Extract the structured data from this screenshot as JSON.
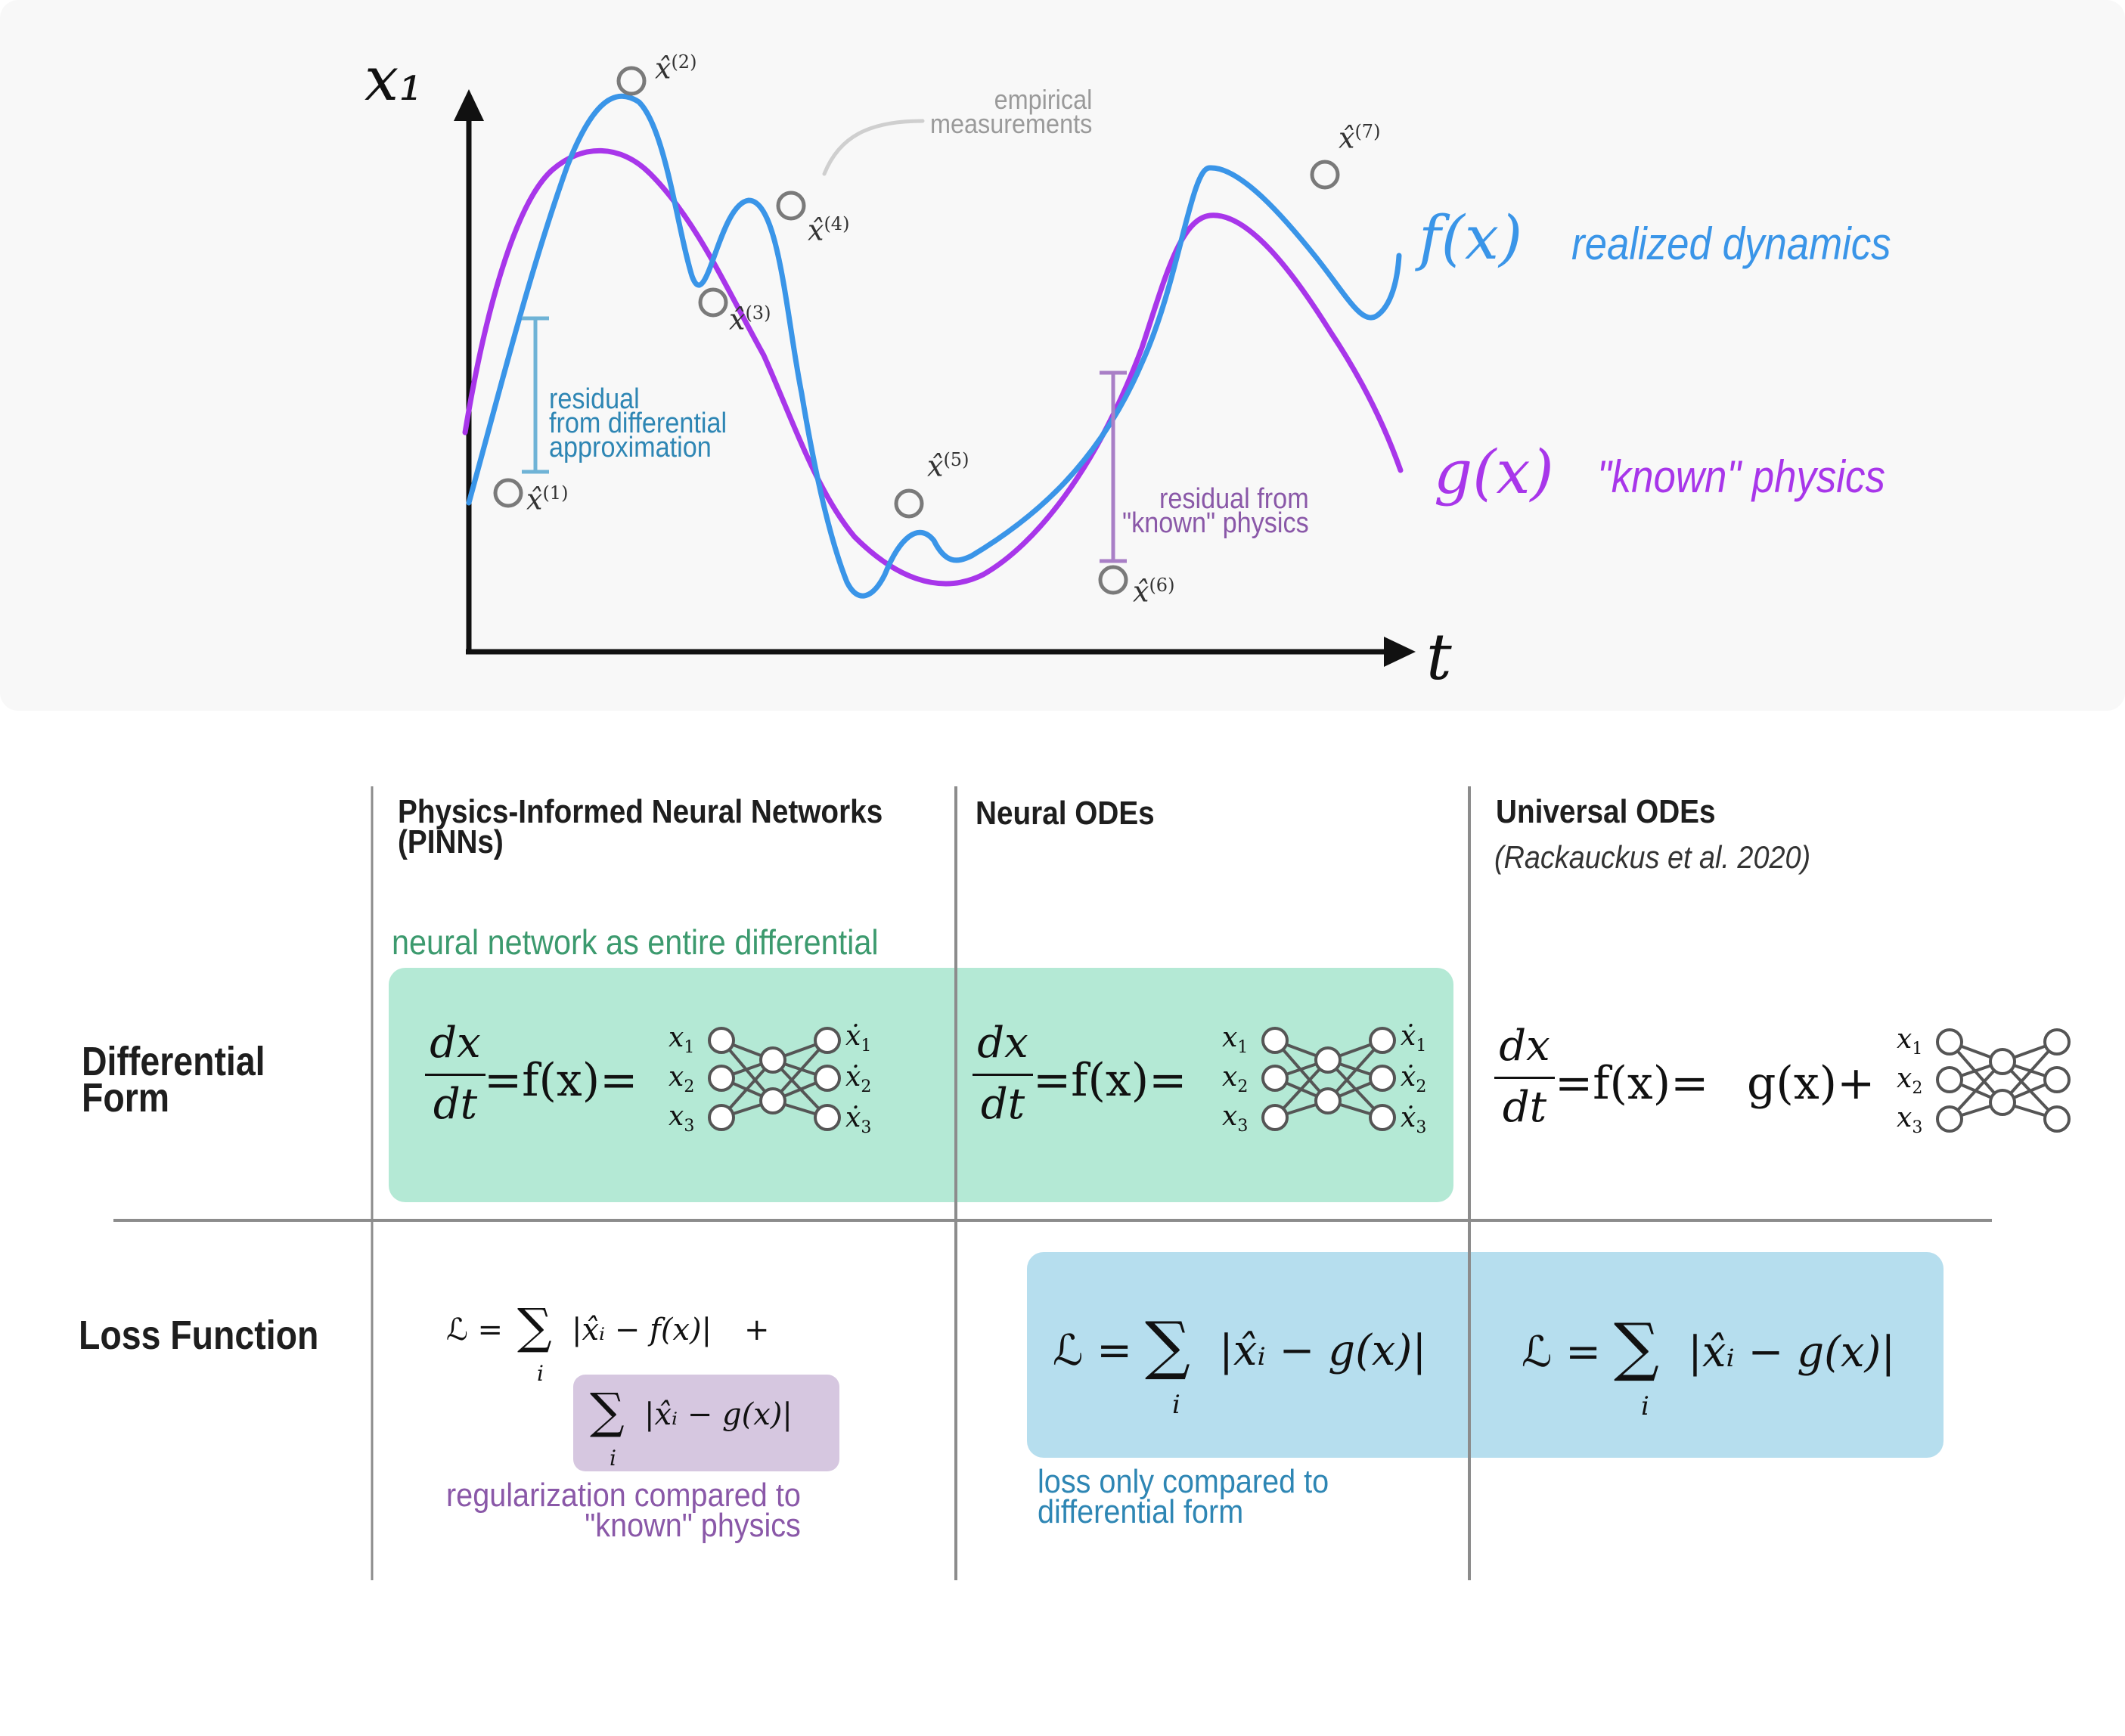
{
  "colors": {
    "panel_bg": "#f8f8f8",
    "f_curve": "#3a95e8",
    "g_curve": "#a836ea",
    "measurement": "#7a7a7a",
    "residual_diff": "#6fb3d6",
    "residual_known": "#a97fc6",
    "green_box": "#b4e9d5",
    "blue_box": "#b6deee",
    "purple_box": "#d6c7e0",
    "green_text": "#3c9a6e",
    "blue_text": "#2e86b4",
    "purple_text": "#8a58a8",
    "grid": "#8c8c8c",
    "axis": "#111111"
  },
  "plot": {
    "y_axis_label": "x₁",
    "x_axis_label": "t",
    "f_label": "f(x)",
    "f_desc": "realized dynamics",
    "g_label": "g(x)",
    "g_desc": "\"known\" physics",
    "empirical_line1": "empirical",
    "empirical_line2": "measurements",
    "residual_diff_lines": [
      "residual",
      "from differential",
      "approximation"
    ],
    "residual_known_lines": [
      "residual from",
      "\"known\" physics"
    ],
    "measurements": [
      {
        "hat": "x̂",
        "sup": "(1)"
      },
      {
        "hat": "x̂",
        "sup": "(2)"
      },
      {
        "hat": "x̂",
        "sup": "(3)"
      },
      {
        "hat": "x̂",
        "sup": "(4)"
      },
      {
        "hat": "x̂",
        "sup": "(5)"
      },
      {
        "hat": "x̂",
        "sup": "(6)"
      },
      {
        "hat": "x̂",
        "sup": "(7)"
      }
    ]
  },
  "table": {
    "columns": [
      {
        "title_line1": "Physics-Informed Neural Networks",
        "title_line2": "(PINNs)"
      },
      {
        "title_line1": "Neural ODEs"
      },
      {
        "title_line1": "Universal ODEs",
        "subtitle": "(Rackauckus et al. 2020)"
      }
    ],
    "rows": [
      {
        "line1": "Differential",
        "line2": "Form"
      },
      {
        "line1": "Loss Function"
      }
    ],
    "green_note": "neural network as entire differential",
    "diff": {
      "dx": "dx",
      "dt": "dt",
      "eq_f": "=f(x)=",
      "g_plus": "g(x)+",
      "inputs": [
        "x",
        "x",
        "x"
      ],
      "input_subs": [
        "1",
        "2",
        "3"
      ],
      "outputs": [
        "ẋ",
        "ẋ",
        "ẋ"
      ],
      "output_subs": [
        "1",
        "2",
        "3"
      ]
    },
    "loss": {
      "L": "ℒ",
      "eq": "=",
      "sum": "∑",
      "index": "i",
      "pinn_term1": "|x̂ᵢ − f(x)|",
      "plus": "+",
      "g_term": "|x̂ᵢ − g(x)|"
    },
    "purple_note_line1": "regularization compared to",
    "purple_note_line2": "\"known\" physics",
    "blue_note_line1": "loss only compared to",
    "blue_note_line2": "differential form"
  }
}
